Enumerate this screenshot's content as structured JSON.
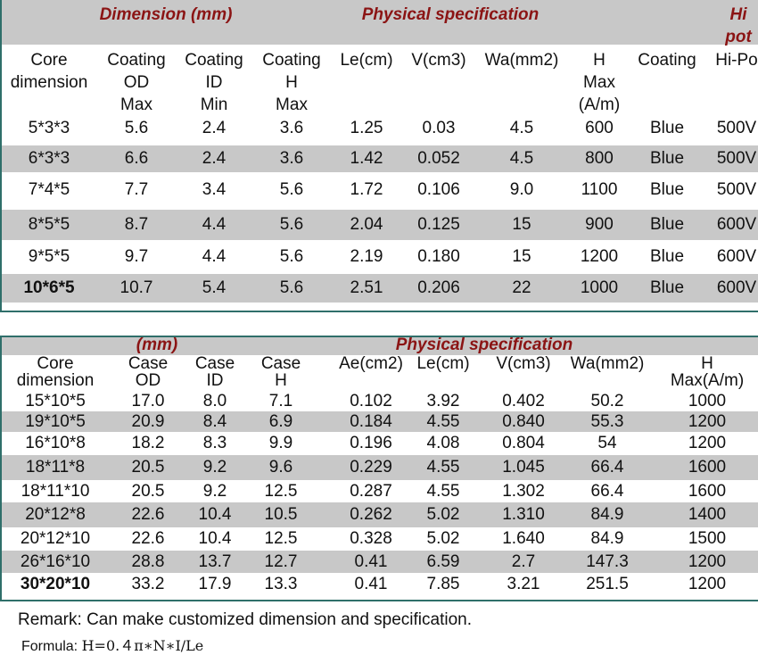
{
  "table1": {
    "group_titles": [
      "Dimension (mm)",
      "Physical specification",
      "Hi",
      "pot"
    ],
    "headers": [
      [
        "Core",
        "dimension"
      ],
      [
        "Coating",
        "OD",
        "Max"
      ],
      [
        "Coating",
        "ID",
        "Min"
      ],
      [
        "Coating",
        "H",
        "Max"
      ],
      [
        "Le(cm)"
      ],
      [
        "V(cm3)"
      ],
      [
        "Wa(mm2)"
      ],
      [
        "H",
        "Max",
        "(A/m)"
      ],
      [
        "Coating"
      ],
      [
        "Hi-Po"
      ]
    ],
    "rows": [
      [
        "5*3*3",
        "5.6",
        "2.4",
        "3.6",
        "1.25",
        "0.03",
        "4.5",
        "600",
        "Blue",
        "500V"
      ],
      [
        "6*3*3",
        "6.6",
        "2.4",
        "3.6",
        "1.42",
        "0.052",
        "4.5",
        "800",
        "Blue",
        "500V"
      ],
      [
        "7*4*5",
        "7.7",
        "3.4",
        "5.6",
        "1.72",
        "0.106",
        "9.0",
        "1100",
        "Blue",
        "500V"
      ],
      [
        "8*5*5",
        "8.7",
        "4.4",
        "5.6",
        "2.04",
        "0.125",
        "15",
        "900",
        "Blue",
        "600V"
      ],
      [
        "9*5*5",
        "9.7",
        "4.4",
        "5.6",
        "2.19",
        "0.180",
        "15",
        "1200",
        "Blue",
        "600V"
      ],
      [
        "10*6*5",
        "10.7",
        "5.4",
        "5.6",
        "2.51",
        "0.206",
        "22",
        "1000",
        "Blue",
        "600V"
      ]
    ]
  },
  "table2": {
    "group_titles": [
      "(mm)",
      "Physical specification"
    ],
    "headers": [
      [
        "Core",
        "dimension"
      ],
      [
        "Case",
        "OD"
      ],
      [
        "Case",
        "ID"
      ],
      [
        "Case",
        "H"
      ],
      [
        "Ae(cm2)"
      ],
      [
        "Le(cm)"
      ],
      [
        "V(cm3)"
      ],
      [
        "Wa(mm2)"
      ],
      [
        "H",
        "Max(A/m)"
      ]
    ],
    "rows": [
      [
        "15*10*5",
        "17.0",
        "8.0",
        "7.1",
        "0.102",
        "3.92",
        "0.402",
        "50.2",
        "1000"
      ],
      [
        "19*10*5",
        "20.9",
        "8.4",
        "6.9",
        "0.184",
        "4.55",
        "0.840",
        "55.3",
        "1200"
      ],
      [
        "16*10*8",
        "18.2",
        "8.3",
        "9.9",
        "0.196",
        "4.08",
        "0.804",
        "54",
        "1200"
      ],
      [
        "18*11*8",
        "20.5",
        "9.2",
        "9.6",
        "0.229",
        "4.55",
        "1.045",
        "66.4",
        "1600"
      ],
      [
        "18*11*10",
        "20.5",
        "9.2",
        "12.5",
        "0.287",
        "4.55",
        "1.302",
        "66.4",
        "1600"
      ],
      [
        "20*12*8",
        "22.6",
        "10.4",
        "10.5",
        "0.262",
        "5.02",
        "1.310",
        "84.9",
        "1400"
      ],
      [
        "20*12*10",
        "22.6",
        "10.4",
        "12.5",
        "0.328",
        "5.02",
        "1.640",
        "84.9",
        "1500"
      ],
      [
        "26*16*10",
        "28.8",
        "13.7",
        "12.7",
        "0.41",
        "6.59",
        "2.7",
        "147.3",
        "1200"
      ],
      [
        "30*20*10",
        "33.2",
        "17.9",
        "13.3",
        "0.41",
        "7.85",
        "3.21",
        "251.5",
        "1200"
      ]
    ]
  },
  "remark": "Remark: Can make customized dimension and specification.",
  "formula_label": "Formula: ",
  "formula": "H=0.４π∗N∗I/Le"
}
